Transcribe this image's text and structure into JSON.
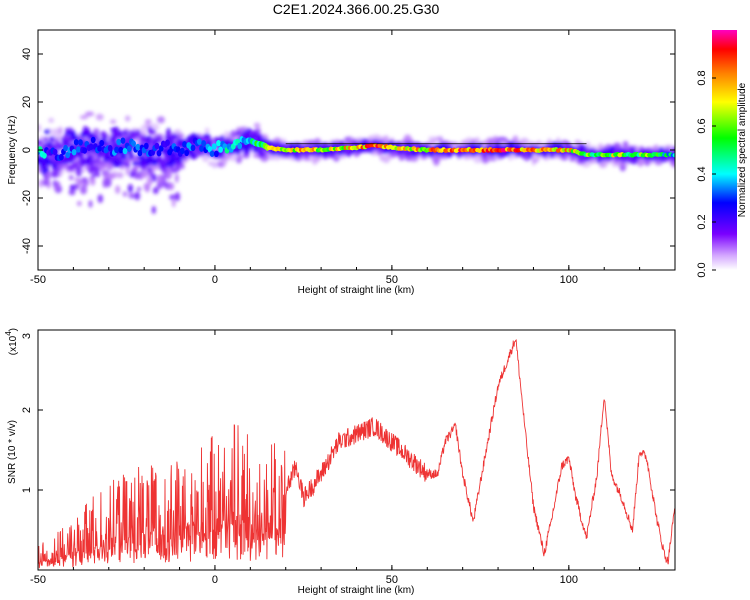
{
  "figure": {
    "title": "C2E1.2024.366.00.25.G30"
  },
  "chart_data": [
    {
      "type": "heatmap",
      "xlabel": "Height of straight line (km)",
      "ylabel": "Frequency (Hz)",
      "xlim": [
        -50,
        130
      ],
      "ylim": [
        -50,
        50
      ],
      "xticks": [
        "-50",
        "0",
        "50",
        "100"
      ],
      "yticks": [
        "-40",
        "-20",
        "0",
        "20",
        "40"
      ],
      "grid": false,
      "colorbar": {
        "label": "Normalized spectral amplitude",
        "range": [
          0,
          1
        ],
        "ticks": [
          "0.0",
          "0.2",
          "0.4",
          "0.6",
          "0.8"
        ],
        "colormap": [
          "#ffffff",
          "#c084fc",
          "#5b00ff",
          "#0000ff",
          "#00ffff",
          "#00ff00",
          "#ffff00",
          "#ff8000",
          "#ff0000",
          "#ff00c0"
        ]
      },
      "ridge": {
        "description_points_height_freq_amp": [
          [
            -48,
            0,
            0.3
          ],
          [
            -45,
            -2,
            0.35
          ],
          [
            -40,
            1,
            0.4
          ],
          [
            -35,
            2,
            0.35
          ],
          [
            -30,
            0,
            0.4
          ],
          [
            -25,
            2,
            0.45
          ],
          [
            -20,
            0,
            0.4
          ],
          [
            -15,
            1,
            0.35
          ],
          [
            -10,
            0,
            0.4
          ],
          [
            -5,
            2,
            0.4
          ],
          [
            0,
            0,
            0.45
          ],
          [
            5,
            2,
            0.5
          ],
          [
            10,
            4,
            0.55
          ],
          [
            15,
            1,
            0.75
          ],
          [
            20,
            0,
            0.8
          ],
          [
            30,
            0,
            0.75
          ],
          [
            40,
            1,
            0.8
          ],
          [
            45,
            2,
            0.95
          ],
          [
            50,
            1,
            0.7
          ],
          [
            60,
            0,
            0.8
          ],
          [
            70,
            0,
            0.9
          ],
          [
            80,
            0,
            0.95
          ],
          [
            90,
            0,
            0.85
          ],
          [
            100,
            0,
            0.8
          ],
          [
            105,
            -2,
            0.6
          ],
          [
            110,
            -2,
            0.7
          ],
          [
            120,
            -2,
            0.65
          ],
          [
            130,
            -2,
            0.5
          ]
        ]
      }
    },
    {
      "type": "line",
      "xlabel": "Height of straight line (km)",
      "ylabel": "SNR (10 * v/v)",
      "yscale_label": "(x10",
      "yscale_exponent": "4",
      "yscale_suffix": ")",
      "xlim": [
        -50,
        130
      ],
      "ylim": [
        0,
        3
      ],
      "xticks": [
        "-50",
        "0",
        "50",
        "100"
      ],
      "yticks": [
        "1",
        "2",
        "3"
      ],
      "grid": false,
      "series": [
        {
          "color": "#ee3333",
          "x": [
            -50,
            -45,
            -40,
            -35,
            -30,
            -25,
            -20,
            -15,
            -10,
            -5,
            0,
            5,
            10,
            15,
            20,
            23,
            25,
            30,
            35,
            40,
            45,
            50,
            55,
            60,
            63,
            65,
            68,
            70,
            73,
            75,
            80,
            85,
            88,
            90,
            93,
            95,
            98,
            100,
            102,
            105,
            108,
            110,
            112,
            115,
            118,
            120,
            122,
            125,
            127,
            128,
            130
          ],
          "y": [
            0.2,
            0.3,
            0.4,
            0.6,
            0.7,
            0.8,
            0.9,
            0.8,
            0.9,
            1.0,
            1.1,
            1.2,
            1.1,
            1.2,
            1.0,
            1.3,
            0.9,
            1.2,
            1.6,
            1.7,
            1.8,
            1.6,
            1.4,
            1.2,
            1.2,
            1.6,
            1.8,
            1.2,
            0.6,
            1.1,
            2.3,
            2.9,
            1.6,
            0.8,
            0.2,
            0.6,
            1.3,
            1.4,
            0.9,
            0.4,
            1.2,
            2.2,
            1.2,
            0.9,
            0.5,
            1.5,
            1.4,
            0.6,
            0.2,
            0.1,
            0.8
          ]
        }
      ]
    }
  ]
}
